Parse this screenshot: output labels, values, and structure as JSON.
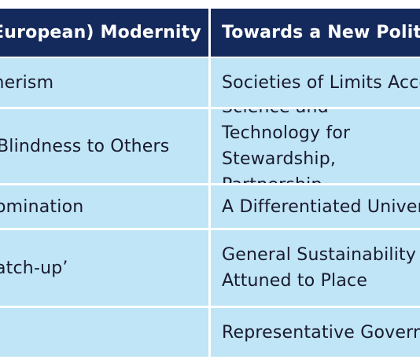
{
  "header": {
    "col1": "European) Modernity",
    "col2": "Towards a New Politics"
  },
  "rows": [
    {
      "left": "merism",
      "right": "Societies of Limits Accepted"
    },
    {
      "left": "Blindness to Others",
      "right": "Science and Technology for Stewardship, Partnership"
    },
    {
      "left": "omination",
      "right": "A Differentiated Universality"
    },
    {
      "left": "atch-up’",
      "right": "General Sustainability Attuned to Place"
    },
    {
      "left": "",
      "right": "Representative Governance"
    }
  ],
  "colors": {
    "header_bg": "#152a5c",
    "row_bg": "#bfe5f6",
    "grid_line": "#ffffff"
  }
}
